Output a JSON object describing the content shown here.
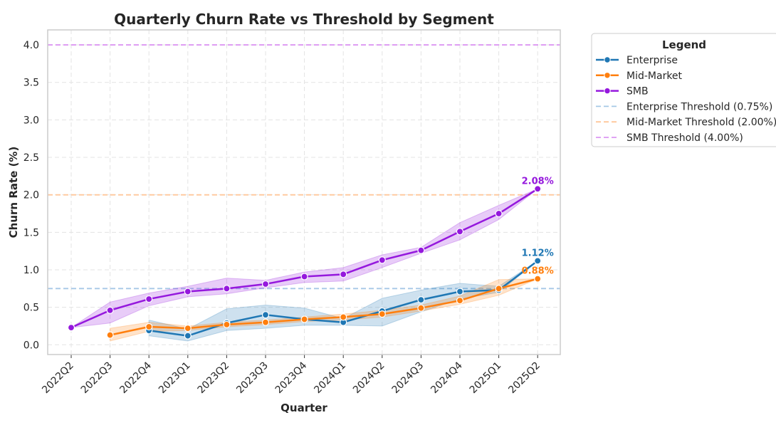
{
  "chart_data": {
    "type": "line",
    "title": "Quarterly Churn Rate vs Threshold by Segment",
    "xlabel": "Quarter",
    "ylabel": "Churn Rate (%)",
    "categories": [
      "2022Q2",
      "2022Q3",
      "2022Q4",
      "2023Q1",
      "2023Q2",
      "2023Q3",
      "2023Q4",
      "2024Q1",
      "2024Q2",
      "2024Q3",
      "2024Q4",
      "2025Q1",
      "2025Q2"
    ],
    "ylim": [
      -0.13,
      4.2
    ],
    "yticks": [
      0.0,
      0.5,
      1.0,
      1.5,
      2.0,
      2.5,
      3.0,
      3.5,
      4.0
    ],
    "ytick_labels": [
      "0.0",
      "0.5",
      "1.0",
      "1.5",
      "2.0",
      "2.5",
      "3.0",
      "3.5",
      "4.0"
    ],
    "grid": true,
    "legend_title": "Legend",
    "legend_position": "outside-top-right",
    "series": [
      {
        "name": "Enterprise",
        "color": "#1f77b4",
        "values": [
          null,
          null,
          0.19,
          0.12,
          0.29,
          0.4,
          0.34,
          0.3,
          0.45,
          0.6,
          0.71,
          0.73,
          1.12
        ],
        "band_low": [
          null,
          null,
          0.12,
          0.05,
          0.19,
          0.22,
          0.26,
          0.26,
          0.25,
          0.44,
          0.61,
          0.7,
          1.12
        ],
        "band_high": [
          null,
          null,
          0.33,
          0.21,
          0.48,
          0.53,
          0.49,
          0.35,
          0.62,
          0.73,
          0.82,
          0.78,
          1.12
        ],
        "end_label": "1.12%"
      },
      {
        "name": "Mid-Market",
        "color": "#ff7f0e",
        "values": [
          null,
          0.13,
          0.24,
          0.22,
          0.27,
          0.3,
          0.34,
          0.37,
          0.41,
          0.49,
          0.59,
          0.75,
          0.88
        ],
        "band_low": [
          null,
          0.05,
          0.18,
          0.19,
          0.24,
          0.27,
          0.31,
          0.33,
          0.37,
          0.45,
          0.54,
          0.66,
          0.88
        ],
        "band_high": [
          null,
          0.22,
          0.3,
          0.25,
          0.3,
          0.33,
          0.37,
          0.41,
          0.46,
          0.53,
          0.65,
          0.87,
          0.88
        ],
        "end_label": "0.88%"
      },
      {
        "name": "SMB",
        "color": "#9518dd",
        "values": [
          0.23,
          0.46,
          0.61,
          0.71,
          0.75,
          0.81,
          0.91,
          0.94,
          1.13,
          1.26,
          1.51,
          1.75,
          2.08
        ],
        "band_low": [
          0.23,
          0.29,
          0.52,
          0.64,
          0.68,
          0.76,
          0.83,
          0.85,
          1.03,
          1.22,
          1.4,
          1.67,
          2.08
        ],
        "band_high": [
          0.23,
          0.57,
          0.69,
          0.78,
          0.89,
          0.86,
          0.97,
          1.03,
          1.2,
          1.3,
          1.63,
          1.86,
          2.08
        ],
        "end_label": "2.08%"
      }
    ],
    "thresholds": [
      {
        "name": "Enterprise Threshold (0.75%)",
        "value": 0.75,
        "color": "#a6c8e6"
      },
      {
        "name": "Mid-Market Threshold (2.00%)",
        "value": 2.0,
        "color": "#ffc79a"
      },
      {
        "name": "SMB Threshold (4.00%)",
        "value": 4.0,
        "color": "#dc96f2"
      }
    ]
  }
}
